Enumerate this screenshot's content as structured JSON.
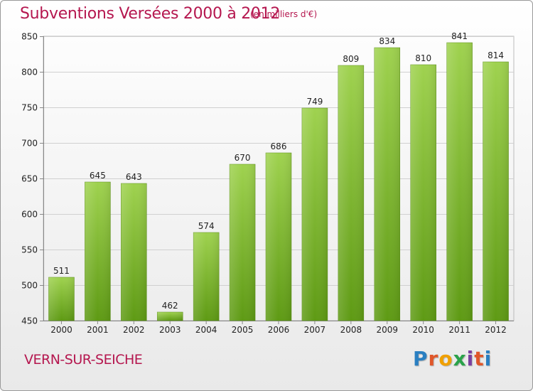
{
  "header": {
    "title": "Subventions Versées 2000 à 2012",
    "subtitle": "(en milliers d'€)"
  },
  "footer": {
    "place": "VERN-SUR-SEICHE",
    "logo_text": "Proxiti",
    "logo_colors": [
      "#2a7fc1",
      "#e0572a",
      "#f0a000",
      "#2aa24a",
      "#7b3fa0",
      "#e0572a",
      "#2a7fc1"
    ]
  },
  "chart_data": {
    "type": "bar",
    "title": "Subventions Versées 2000 à 2012",
    "subtitle": "(en milliers d'€)",
    "categories": [
      "2000",
      "2001",
      "2002",
      "2003",
      "2004",
      "2005",
      "2006",
      "2007",
      "2008",
      "2009",
      "2010",
      "2011",
      "2012"
    ],
    "values": [
      511,
      645,
      643,
      462,
      574,
      670,
      686,
      749,
      809,
      834,
      810,
      841,
      814
    ],
    "ylim": [
      450,
      850
    ],
    "yticks": [
      450,
      500,
      550,
      600,
      650,
      700,
      750,
      800,
      850
    ],
    "grid": true,
    "bar_color_top": "#9fd24f",
    "bar_color_bottom": "#5e9a14",
    "legend": "none"
  }
}
